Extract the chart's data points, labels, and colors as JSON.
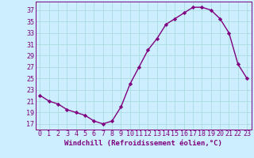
{
  "x": [
    0,
    1,
    2,
    3,
    4,
    5,
    6,
    7,
    8,
    9,
    10,
    11,
    12,
    13,
    14,
    15,
    16,
    17,
    18,
    19,
    20,
    21,
    22,
    23
  ],
  "y": [
    22,
    21,
    20.5,
    19.5,
    19,
    18.5,
    17.5,
    17,
    17.5,
    20,
    24,
    27,
    30,
    32,
    34.5,
    35.5,
    36.5,
    37.5,
    37.5,
    37,
    35.5,
    33,
    27.5,
    25
  ],
  "line_color": "#800080",
  "marker": "D",
  "marker_size": 2.2,
  "bg_color": "#cceeff",
  "grid_color": "#aadddd",
  "xlabel": "Windchill (Refroidissement éolien,°C)",
  "ytick_labels": [
    "17",
    "19",
    "21",
    "23",
    "25",
    "27",
    "29",
    "31",
    "33",
    "35",
    "37"
  ],
  "yticks": [
    17,
    19,
    21,
    23,
    25,
    27,
    29,
    31,
    33,
    35,
    37
  ],
  "ylim": [
    16.0,
    38.5
  ],
  "xlim": [
    -0.5,
    23.5
  ],
  "xtick_labels": [
    "0",
    "1",
    "2",
    "3",
    "4",
    "5",
    "6",
    "7",
    "8",
    "9",
    "10",
    "11",
    "12",
    "13",
    "14",
    "15",
    "16",
    "17",
    "18",
    "19",
    "20",
    "21",
    "22",
    "23"
  ],
  "label_fontsize": 6.5,
  "tick_fontsize": 6.0,
  "line_width": 1.0
}
